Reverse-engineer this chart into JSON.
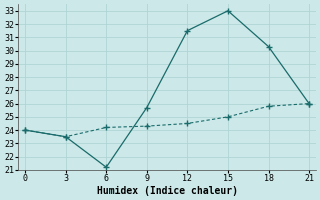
{
  "xlabel": "Humidex (Indice chaleur)",
  "line1_x": [
    0,
    3,
    6,
    9,
    12,
    15,
    18,
    21
  ],
  "line1_y": [
    24.0,
    23.5,
    21.2,
    25.7,
    31.5,
    33.0,
    30.3,
    26.0
  ],
  "line2_x": [
    0,
    3,
    6,
    9,
    12,
    15,
    18,
    21
  ],
  "line2_y": [
    24.0,
    23.5,
    24.2,
    24.3,
    24.5,
    25.0,
    25.8,
    26.0
  ],
  "line_color": "#1a6b6b",
  "xlim": [
    -0.5,
    21.5
  ],
  "ylim": [
    21,
    33.5
  ],
  "xticks": [
    0,
    3,
    6,
    9,
    12,
    15,
    18,
    21
  ],
  "yticks": [
    21,
    22,
    23,
    24,
    25,
    26,
    27,
    28,
    29,
    30,
    31,
    32,
    33
  ],
  "bg_color": "#cce8e8",
  "grid_color": "#b0d4d4",
  "marker": "+",
  "marker_size": 5,
  "xlabel_fontsize": 7,
  "tick_fontsize": 6
}
